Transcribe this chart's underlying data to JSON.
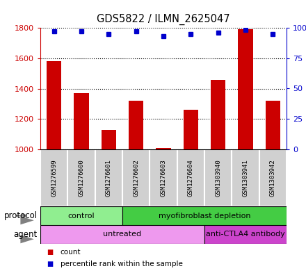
{
  "title": "GDS5822 / ILMN_2625047",
  "samples": [
    "GSM1276599",
    "GSM1276600",
    "GSM1276601",
    "GSM1276602",
    "GSM1276603",
    "GSM1276604",
    "GSM1303940",
    "GSM1303941",
    "GSM1303942"
  ],
  "counts": [
    1580,
    1370,
    1130,
    1320,
    1010,
    1260,
    1455,
    1790,
    1320
  ],
  "percentiles": [
    97,
    97,
    95,
    97,
    93,
    95,
    96,
    98,
    95
  ],
  "ylim_left": [
    1000,
    1800
  ],
  "ylim_right": [
    0,
    100
  ],
  "yticks_left": [
    1000,
    1200,
    1400,
    1600,
    1800
  ],
  "yticks_right": [
    0,
    25,
    50,
    75,
    100
  ],
  "bar_color": "#cc0000",
  "dot_color": "#0000cc",
  "protocol_groups": [
    {
      "label": "control",
      "start": 0,
      "end": 3,
      "color": "#90ee90"
    },
    {
      "label": "myofibroblast depletion",
      "start": 3,
      "end": 9,
      "color": "#44cc44"
    }
  ],
  "agent_groups": [
    {
      "label": "untreated",
      "start": 0,
      "end": 6,
      "color": "#ee99ee"
    },
    {
      "label": "anti-CTLA4 antibody",
      "start": 6,
      "end": 9,
      "color": "#cc44cc"
    }
  ],
  "protocol_label": "protocol",
  "agent_label": "agent",
  "left_axis_color": "#cc0000",
  "right_axis_color": "#0000cc",
  "sample_box_color": "#d0d0d0",
  "grid_linestyle": "dotted"
}
